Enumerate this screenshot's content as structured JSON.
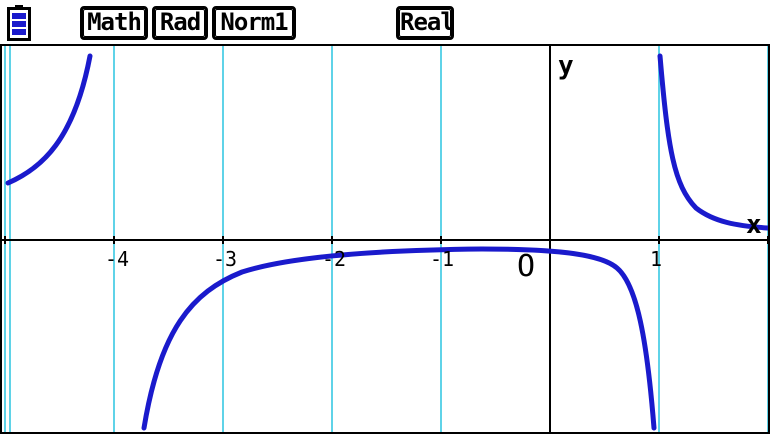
{
  "statusbar": {
    "battery_icon": "battery-icon",
    "modes": [
      "Math",
      "Rad",
      "Norm1"
    ],
    "number_mode": "Real"
  },
  "graph": {
    "axis_labels": {
      "x": "x",
      "y": "y"
    },
    "origin_label": "O",
    "x_tick_labels": [
      "-4",
      "-3",
      "-2",
      "-1",
      "1"
    ],
    "x_range": [
      -5,
      2
    ],
    "grid": "vertical lines at integer x",
    "colors": {
      "grid": "#5fd3e8",
      "curve": "#1a1acc",
      "axes": "#000000"
    }
  }
}
